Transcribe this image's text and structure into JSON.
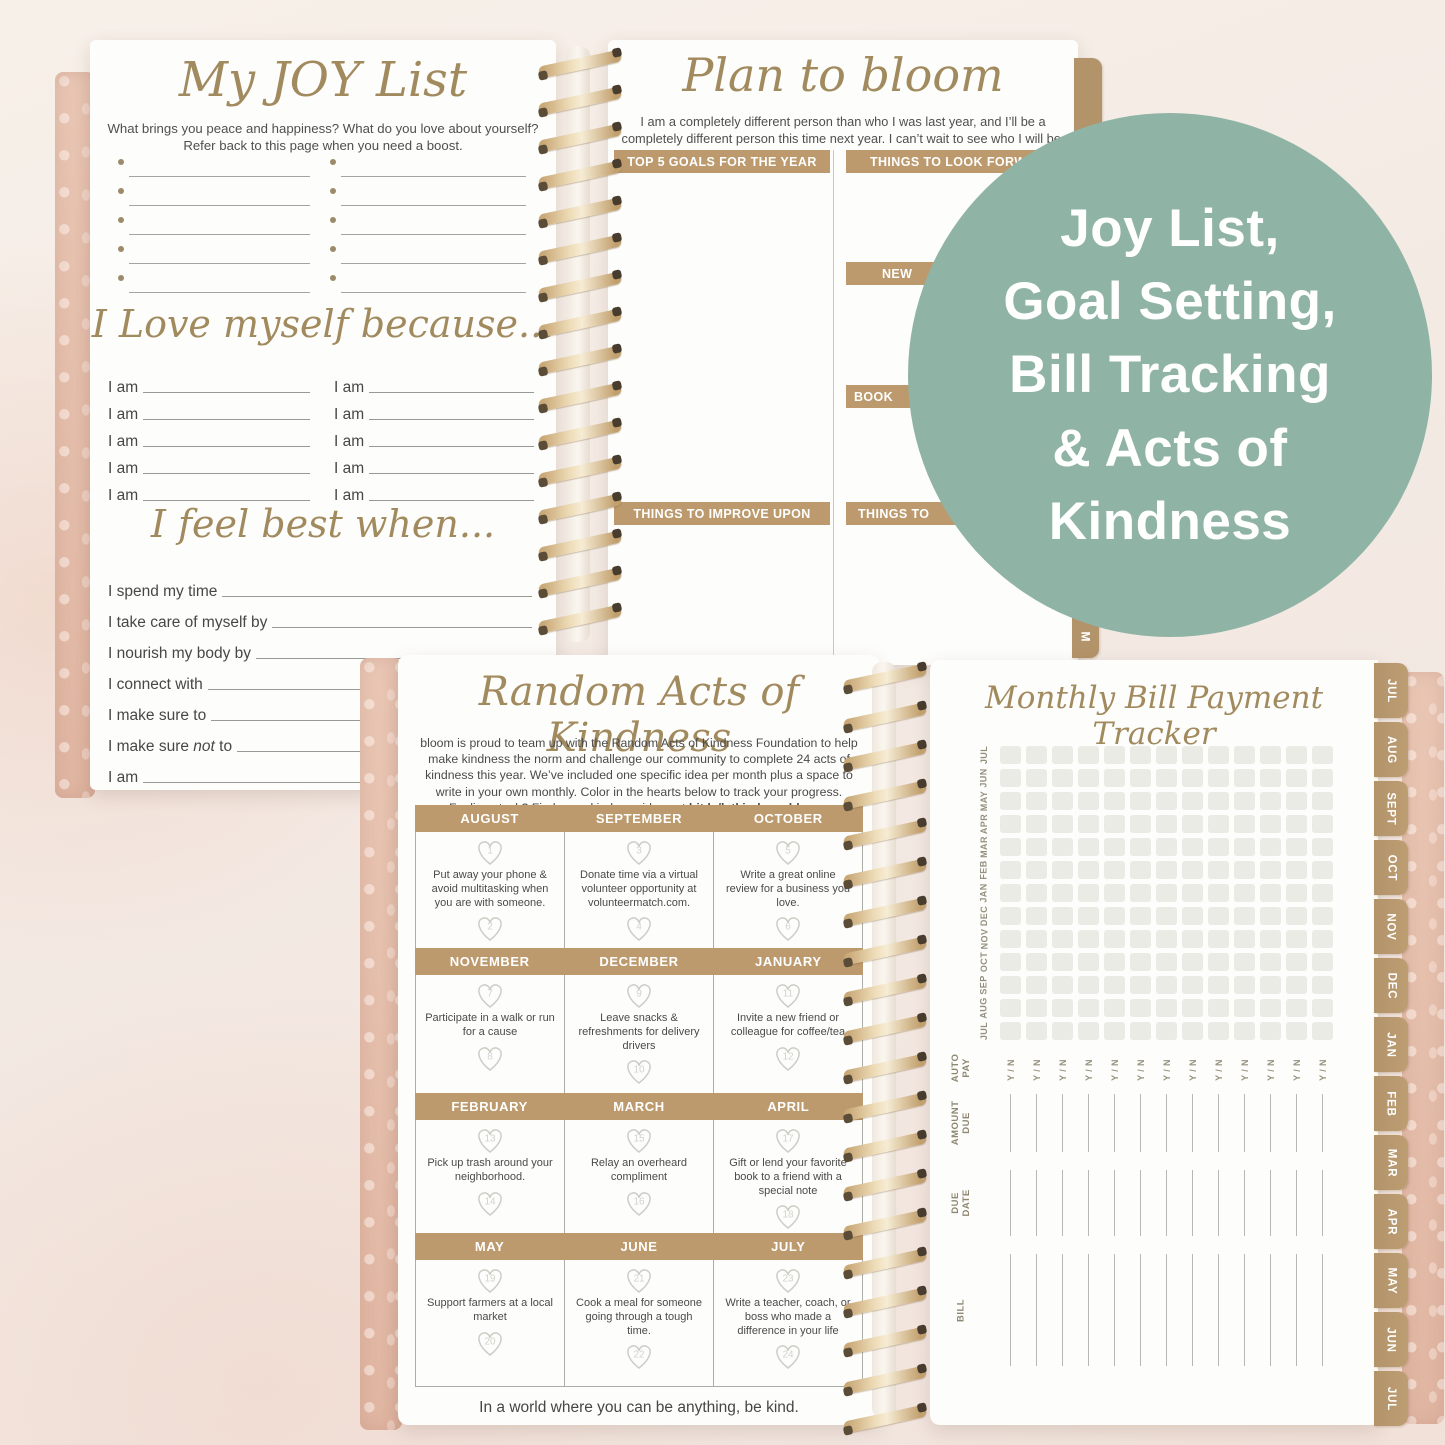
{
  "colors": {
    "accent_circle": "#8fb3a4",
    "tan_bar": "#bc9a6d",
    "tab_tan": "#b3936a",
    "script_heading": "#a28a5f",
    "page_white": "#fdfdfb"
  },
  "overlay": {
    "lines": [
      "Joy List,",
      "Goal Setting,",
      "Bill Tracking",
      "& Acts of",
      "Kindness"
    ]
  },
  "joy_page": {
    "title": "My JOY List",
    "subtitle_lines": [
      "What brings you peace and happiness? What do you love about yourself?",
      "Refer back to this page when you need a boost."
    ],
    "bullet_rows": 5,
    "love_title": "I Love myself because...",
    "iam_label": "I am",
    "iam_rows": 5,
    "feel_title": "I feel best when...",
    "feel_prompts": [
      "I spend my time",
      "I take care of myself by",
      "I nourish my body by",
      "I connect with",
      "I make sure to",
      {
        "pre": "I make sure ",
        "em": "not",
        "post": " to"
      },
      "I am"
    ]
  },
  "plan_page": {
    "title": "Plan to bloom",
    "subtitle_lines": [
      "I am a completely different person than who I was last year, and I’ll be a",
      "completely different person this time next year. I can’t wait to see who I will be."
    ],
    "sections": {
      "top5": "TOP 5 GOALS FOR THE YEAR",
      "look_forward": "THINGS TO LOOK FORWARD",
      "new_things": "NEW",
      "books": "BOOK",
      "improve": "THINGS TO IMPROVE UPON",
      "things_to": "THINGS TO"
    },
    "tab": "JUL",
    "side_tab": "M"
  },
  "kindness_page": {
    "title": "Random Acts of Kindness",
    "intro_lines": [
      "bloom is proud to team up with the Random Acts of Kindness Foundation to help",
      "make kindness the norm and challenge our community to complete 24 acts of",
      "kindness this year. We’ve included one specific idea per month plus a space to",
      "write in your own monthly. Color in the hearts below to track your progress."
    ],
    "intro_last": {
      "pre": "Feeling stuck? Find more kindness ideas at ",
      "link": "bit.ly/letkindnessbloom",
      "post": "."
    },
    "months": [
      {
        "name": "AUGUST",
        "heart1": "1",
        "text": "Put away your phone & avoid multitasking when you are with someone.",
        "heart2": "2"
      },
      {
        "name": "SEPTEMBER",
        "heart1": "3",
        "text": "Donate time via a virtual volunteer opportunity at volunteermatch.com.",
        "heart2": "4"
      },
      {
        "name": "OCTOBER",
        "heart1": "5",
        "text": "Write a great online review for a business you love.",
        "heart2": "6"
      },
      {
        "name": "NOVEMBER",
        "heart1": "7",
        "text": "Participate in a walk or run for a cause",
        "heart2": "8"
      },
      {
        "name": "DECEMBER",
        "heart1": "9",
        "text": "Leave snacks & refreshments for delivery drivers",
        "heart2": "10"
      },
      {
        "name": "JANUARY",
        "heart1": "11",
        "text": "Invite a new friend or colleague for coffee/tea",
        "heart2": "12"
      },
      {
        "name": "FEBRUARY",
        "heart1": "13",
        "text": "Pick up trash around your neighborhood.",
        "heart2": "14"
      },
      {
        "name": "MARCH",
        "heart1": "15",
        "text": "Relay an overheard compliment",
        "heart2": "16"
      },
      {
        "name": "APRIL",
        "heart1": "17",
        "text": "Gift or lend your favorite book to a friend with a special note",
        "heart2": "18"
      },
      {
        "name": "MAY",
        "heart1": "19",
        "text": "Support farmers at a local market",
        "heart2": "20"
      },
      {
        "name": "JUNE",
        "heart1": "21",
        "text": "Cook a meal for someone going through a tough time.",
        "heart2": "22"
      },
      {
        "name": "JULY",
        "heart1": "23",
        "text": "Write a teacher, coach, or boss who made a difference in your life",
        "heart2": "24"
      }
    ],
    "footer": "In a world where you can be anything, be kind."
  },
  "bill_page": {
    "title": "Monthly Bill Payment Tracker",
    "grid_row_labels": [
      "JUL",
      "JUN",
      "MAY",
      "APR",
      "MAR",
      "FEB",
      "JAN",
      "DEC",
      "NOV",
      "OCT",
      "SEP",
      "AUG",
      "JUL"
    ],
    "columns": 13,
    "autopay_label": "AUTO PAY",
    "yn_label": "Y / N",
    "amount_label": "AMOUNT DUE",
    "duedate_label": "DUE DATE",
    "bill_label": "BILL",
    "tabs": [
      "JUL",
      "AUG",
      "SEPT",
      "OCT",
      "NOV",
      "DEC",
      "JAN",
      "FEB",
      "MAR",
      "APR",
      "MAY",
      "JUN",
      "JUL"
    ]
  }
}
